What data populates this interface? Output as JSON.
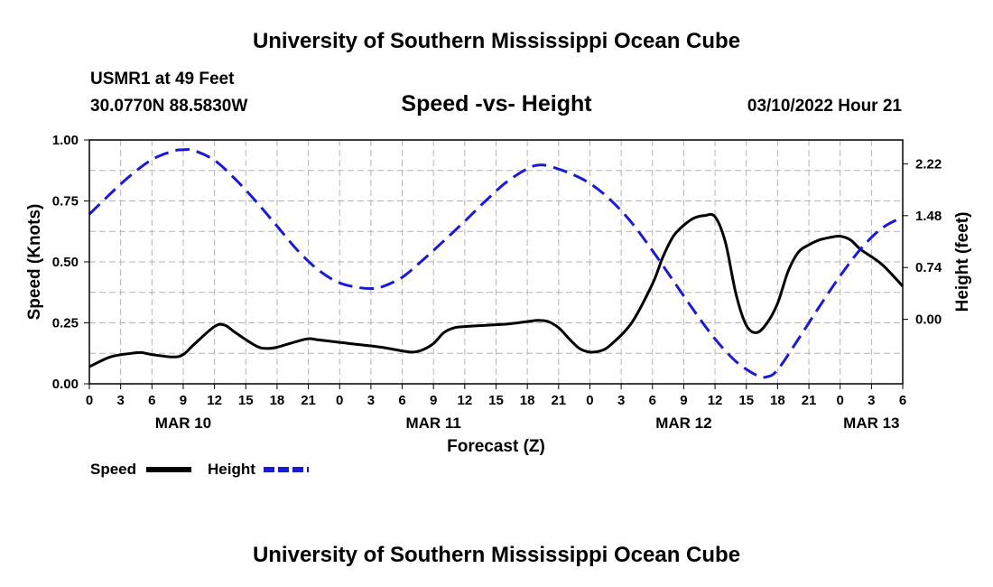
{
  "header": {
    "title": "University of Southern Mississippi Ocean Cube",
    "station": "USMR1 at 49 Feet",
    "coords": "30.0770N  88.5830W",
    "subtitle": "Speed -vs- Height",
    "datetime": "03/10/2022 Hour 21"
  },
  "footer": {
    "title": "University of Southern Mississippi Ocean Cube"
  },
  "colors": {
    "speed": "#000000",
    "height": "#1a1ad6",
    "grid": "#b4b4b4"
  },
  "chart_data": {
    "type": "line",
    "title": "Speed -vs- Height",
    "xlabel": "Forecast (Z)",
    "ylabel": "Speed (Knots)",
    "y2label": "Height (feet)",
    "x_range_hours": [
      0,
      78
    ],
    "x_tick_labels": [
      "0",
      "3",
      "6",
      "9",
      "12",
      "15",
      "18",
      "21",
      "0",
      "3",
      "6",
      "9",
      "12",
      "15",
      "18",
      "21",
      "0",
      "3",
      "6",
      "9",
      "12",
      "15",
      "18",
      "21",
      "0",
      "3",
      "6"
    ],
    "date_labels": [
      {
        "label": "MAR 10",
        "hour": 9
      },
      {
        "label": "MAR 11",
        "hour": 33
      },
      {
        "label": "MAR 12",
        "hour": 57
      },
      {
        "label": "MAR 13",
        "hour": 75
      }
    ],
    "ylim": [
      0,
      1.0
    ],
    "y_ticks": [
      0.0,
      0.25,
      0.5,
      0.75,
      1.0
    ],
    "y_tick_labels": [
      "0.00",
      "0.25",
      "0.50",
      "0.75",
      "1.00"
    ],
    "y2lim": [
      -0.92,
      2.56
    ],
    "y2_ticks": [
      0.0,
      0.74,
      1.48,
      2.22
    ],
    "y2_tick_labels": [
      "0.00",
      "0.74",
      "1.48",
      "2.22"
    ],
    "legend": [
      "Speed",
      "Height"
    ],
    "series": [
      {
        "name": "Speed",
        "axis": "left",
        "style": "solid",
        "x": [
          0,
          2,
          4,
          5,
          6,
          8,
          9,
          10,
          12,
          13,
          14,
          16,
          17,
          18,
          20,
          21,
          22,
          24,
          26,
          28,
          30,
          31,
          32,
          33,
          34,
          35,
          36,
          38,
          40,
          42,
          43,
          44,
          45,
          46,
          47,
          48,
          49,
          50,
          52,
          54,
          55,
          56,
          57,
          58,
          59,
          60,
          61,
          62,
          63,
          64,
          65,
          66,
          67,
          68,
          69,
          70,
          71,
          72,
          73,
          74,
          76,
          78
        ],
        "values": [
          0.07,
          0.11,
          0.125,
          0.128,
          0.12,
          0.11,
          0.12,
          0.16,
          0.235,
          0.24,
          0.21,
          0.155,
          0.145,
          0.15,
          0.175,
          0.185,
          0.18,
          0.17,
          0.16,
          0.15,
          0.135,
          0.13,
          0.14,
          0.165,
          0.21,
          0.23,
          0.235,
          0.24,
          0.245,
          0.255,
          0.26,
          0.255,
          0.23,
          0.185,
          0.145,
          0.13,
          0.135,
          0.16,
          0.25,
          0.41,
          0.52,
          0.605,
          0.65,
          0.68,
          0.69,
          0.685,
          0.58,
          0.37,
          0.24,
          0.21,
          0.25,
          0.33,
          0.46,
          0.54,
          0.57,
          0.59,
          0.6,
          0.605,
          0.59,
          0.55,
          0.49,
          0.4
        ]
      },
      {
        "name": "Height",
        "axis": "right",
        "style": "dashed",
        "x": [
          0,
          2,
          4,
          6,
          8,
          9,
          10,
          12,
          14,
          16,
          18,
          20,
          22,
          24,
          26,
          27,
          28,
          30,
          32,
          34,
          36,
          38,
          40,
          42,
          43,
          44,
          46,
          48,
          50,
          52,
          54,
          56,
          58,
          60,
          62,
          64,
          65,
          66,
          68,
          70,
          72,
          74,
          76,
          78
        ],
        "values": [
          1.5,
          1.79,
          2.06,
          2.28,
          2.4,
          2.42,
          2.41,
          2.27,
          2.0,
          1.68,
          1.33,
          0.98,
          0.7,
          0.52,
          0.45,
          0.44,
          0.46,
          0.6,
          0.85,
          1.12,
          1.4,
          1.69,
          1.96,
          2.15,
          2.2,
          2.19,
          2.09,
          1.94,
          1.7,
          1.38,
          0.98,
          0.55,
          0.12,
          -0.28,
          -0.6,
          -0.8,
          -0.82,
          -0.72,
          -0.28,
          0.18,
          0.62,
          1.01,
          1.3,
          1.46
        ]
      }
    ]
  }
}
